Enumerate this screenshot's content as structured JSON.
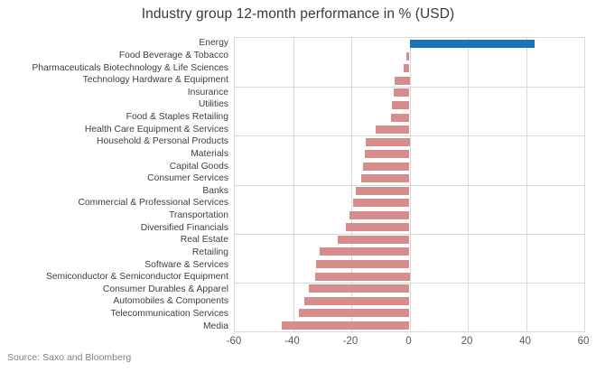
{
  "title": "Industry group 12-month performance in % (USD)",
  "source": "Source: Saxo and Bloomberg",
  "colors": {
    "positive_bar": "#1c73b8",
    "negative_bar": "#d78d8b",
    "grid": "#d9d9d9",
    "title_text": "#3a3a3a",
    "label_text": "#3f3f3f",
    "tick_text": "#595959",
    "source_text": "#808080"
  },
  "chart_data": {
    "type": "bar",
    "orientation": "horizontal",
    "title": "Industry group 12-month performance in % (USD)",
    "xlabel": "",
    "ylabel": "",
    "xlim": [
      -60,
      60
    ],
    "xticks": [
      -60,
      -40,
      -20,
      0,
      20,
      40,
      60
    ],
    "grid": "on",
    "legend": "none",
    "categories": [
      "Energy",
      "Food Beverage & Tobacco",
      "Pharmaceuticals Biotechnology & Life Sciences",
      "Technology Hardware & Equipment",
      "Insurance",
      "Utilities",
      "Food & Staples Retailing",
      "Health Care Equipment & Services",
      "Household & Personal Products",
      "Materials",
      "Capital Goods",
      "Consumer Services",
      "Banks",
      "Commercial & Professional Services",
      "Transportation",
      "Diversified Financials",
      "Real Estate",
      "Retailing",
      "Software & Services",
      "Semiconductor & Semiconductor Equipment",
      "Consumer Durables & Apparel",
      "Automobiles & Components",
      "Telecommunication Services",
      "Media"
    ],
    "values": [
      43,
      -1,
      -2,
      -5,
      -5.5,
      -6,
      -6.5,
      -11.5,
      -15,
      -15.5,
      -16,
      -16.5,
      -18.5,
      -19.5,
      -20.5,
      -22,
      -24.5,
      -31,
      -32,
      -32.5,
      -34.5,
      -36,
      -38,
      -44
    ]
  }
}
